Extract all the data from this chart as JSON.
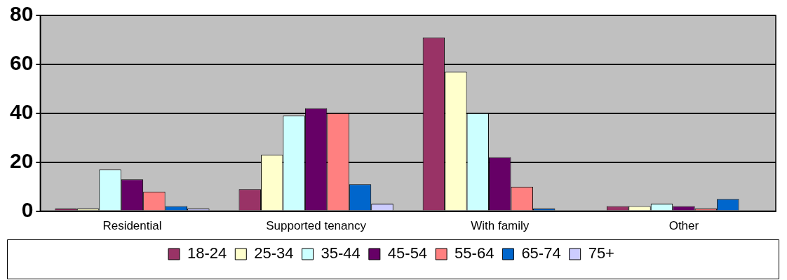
{
  "chart_data": {
    "type": "bar",
    "categories": [
      "Residential",
      "Supported tenancy",
      "With family",
      "Other"
    ],
    "series": [
      {
        "name": "18-24",
        "color": "#993366",
        "values": [
          1,
          9,
          71,
          2
        ]
      },
      {
        "name": "25-34",
        "color": "#ffffcc",
        "values": [
          1,
          23,
          57,
          2
        ]
      },
      {
        "name": "35-44",
        "color": "#ccffff",
        "values": [
          17,
          39,
          40,
          3
        ]
      },
      {
        "name": "45-54",
        "color": "#660066",
        "values": [
          13,
          42,
          22,
          2
        ]
      },
      {
        "name": "55-64",
        "color": "#ff8080",
        "values": [
          8,
          40,
          10,
          1
        ]
      },
      {
        "name": "65-74",
        "color": "#0066cc",
        "values": [
          2,
          11,
          1,
          5
        ]
      },
      {
        "name": "75+",
        "color": "#ccccff",
        "values": [
          1,
          3,
          0,
          0
        ]
      }
    ],
    "ylim": [
      0,
      80
    ],
    "yticks": [
      0,
      20,
      40,
      60,
      80
    ],
    "grid": "y",
    "legend": "bottom"
  }
}
